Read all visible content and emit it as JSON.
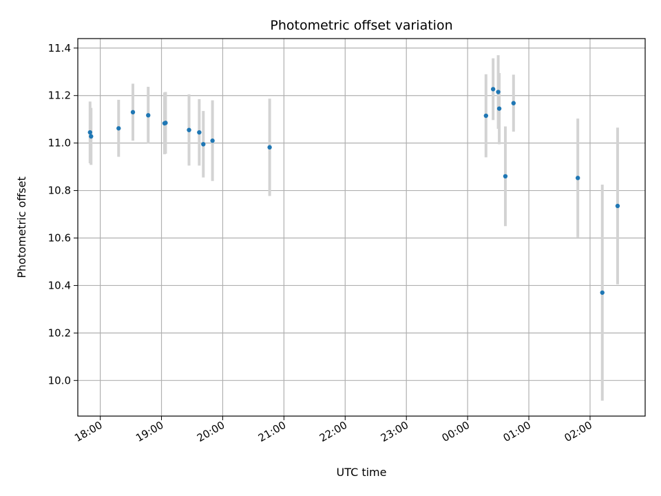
{
  "chart_data": {
    "type": "scatter",
    "title": "Photometric offset variation",
    "xlabel": "UTC time",
    "ylabel": "Photometric offset",
    "xlim": [
      "17:38",
      "02:54"
    ],
    "ylim": [
      9.85,
      11.44
    ],
    "x_ticks": [
      "18:00",
      "19:00",
      "20:00",
      "21:00",
      "22:00",
      "23:00",
      "00:00",
      "01:00",
      "02:00"
    ],
    "y_ticks": [
      "10.0",
      "10.2",
      "10.4",
      "10.6",
      "10.8",
      "11.0",
      "11.2",
      "11.4"
    ],
    "y_tick_values": [
      10.0,
      10.2,
      10.4,
      10.6,
      10.8,
      11.0,
      11.2,
      11.4
    ],
    "grid": true,
    "colors": {
      "marker": "#1f77b4",
      "errorbar": "#d3d3d3"
    },
    "points": [
      {
        "x": "17:50",
        "y": 11.045,
        "err": 0.13
      },
      {
        "x": "17:51",
        "y": 11.028,
        "err": 0.12
      },
      {
        "x": "18:18",
        "y": 11.062,
        "err": 0.12
      },
      {
        "x": "18:32",
        "y": 11.13,
        "err": 0.12
      },
      {
        "x": "18:47",
        "y": 11.117,
        "err": 0.12
      },
      {
        "x": "19:03",
        "y": 11.083,
        "err": 0.13
      },
      {
        "x": "19:04",
        "y": 11.085,
        "err": 0.13
      },
      {
        "x": "19:27",
        "y": 11.055,
        "err": 0.15
      },
      {
        "x": "19:37",
        "y": 11.045,
        "err": 0.14
      },
      {
        "x": "19:41",
        "y": 10.995,
        "err": 0.14
      },
      {
        "x": "19:50",
        "y": 11.01,
        "err": 0.17
      },
      {
        "x": "20:46",
        "y": 10.982,
        "err": 0.205
      },
      {
        "x": "00:18",
        "y": 11.115,
        "err": 0.175
      },
      {
        "x": "00:25",
        "y": 11.227,
        "err": 0.13
      },
      {
        "x": "00:30",
        "y": 11.215,
        "err": 0.155
      },
      {
        "x": "00:31",
        "y": 11.145,
        "err": 0.15
      },
      {
        "x": "00:37",
        "y": 10.86,
        "err": 0.21
      },
      {
        "x": "00:45",
        "y": 11.168,
        "err": 0.12
      },
      {
        "x": "01:48",
        "y": 10.853,
        "err": 0.25
      },
      {
        "x": "02:12",
        "y": 10.37,
        "err": 0.455
      },
      {
        "x": "02:27",
        "y": 10.735,
        "err": 0.33
      }
    ]
  }
}
